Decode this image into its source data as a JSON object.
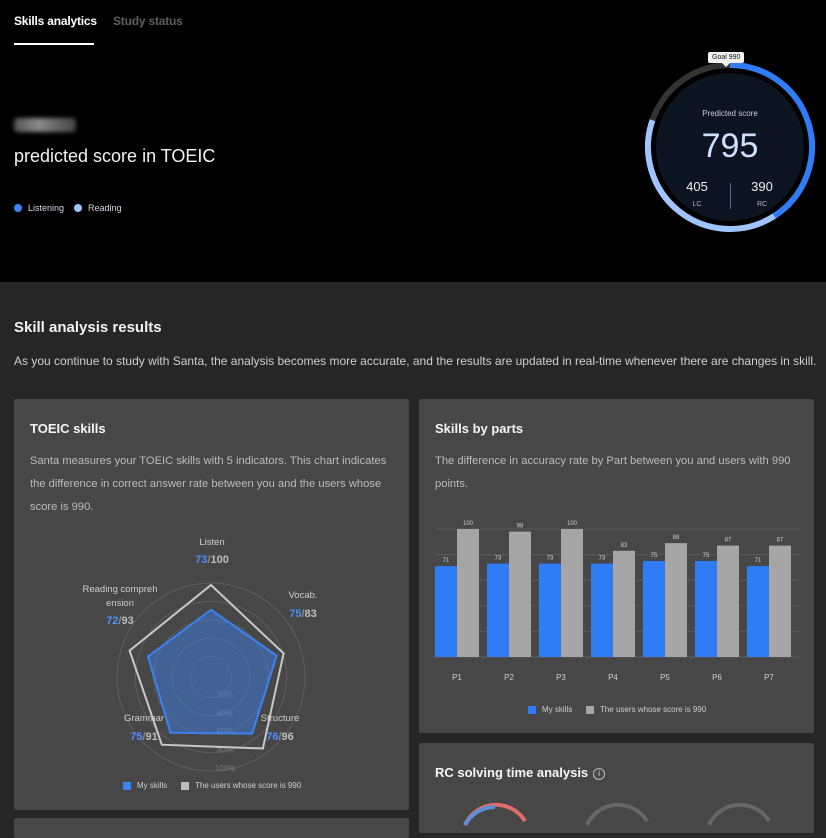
{
  "tabs": [
    {
      "label": "Skills analytics",
      "active": true
    },
    {
      "label": "Study status",
      "active": false
    }
  ],
  "hero": {
    "headline": "predicted score in TOEIC",
    "legend": [
      {
        "label": "Listening",
        "color": "#3b82f6"
      },
      {
        "label": "Reading",
        "color": "#9fc4ff"
      }
    ]
  },
  "gauge": {
    "goal_label": "Goal 990",
    "predicted_label": "Predicted score",
    "predicted_score": "795",
    "lc_score": "405",
    "lc_label": "LC",
    "rc_score": "390",
    "rc_label": "RC",
    "max": 990,
    "lc_value": 405,
    "rc_value": 390
  },
  "analysis": {
    "title": "Skill analysis results",
    "description": "As you continue to study with Santa, the analysis becomes more accurate, and the results are updated in real-time whenever there are changes in skill."
  },
  "toeic_skills": {
    "title": "TOEIC skills",
    "description_lines": [
      "Santa measures your TOEIC skills with 5 indicators. This chart indicates",
      "the difference in correct answer rate between you and the users whose",
      "score is 990."
    ],
    "grid_labels": [
      "20%",
      "40%",
      "60%",
      "80%",
      "100%"
    ],
    "legend": {
      "mine": "My skills",
      "other": "The users whose score is 990"
    }
  },
  "skills_by_parts": {
    "title": "Skills by parts",
    "description_lines": [
      "The difference in accuracy rate by Part between you and users with 990",
      "points."
    ],
    "legend": {
      "mine": "My skills",
      "other": "The users whose score is 990"
    }
  },
  "rc_time": {
    "title": "RC solving time analysis",
    "info_icon": "i"
  },
  "chart_data": [
    {
      "type": "radar",
      "axes": [
        {
          "label": "Listen",
          "mine": 73,
          "other": 100
        },
        {
          "label": "Vocab.",
          "mine": 75,
          "other": 83
        },
        {
          "label": "Structure",
          "mine": 76,
          "other": 96
        },
        {
          "label": "Grammar",
          "mine": 75,
          "other": 91
        },
        {
          "label": "Reading compreh ension",
          "mine": 72,
          "other": 93
        }
      ],
      "series": [
        {
          "name": "My skills",
          "color": "#3b82f6"
        },
        {
          "name": "The users whose score is 990",
          "color": "#bdbdbd"
        }
      ],
      "range": [
        0,
        100
      ]
    },
    {
      "type": "bar",
      "categories": [
        "P1",
        "P2",
        "P3",
        "P4",
        "P5",
        "P6",
        "P7"
      ],
      "series": [
        {
          "name": "My skills",
          "color": "#2f7cf6",
          "values": [
            71,
            73,
            73,
            73,
            75,
            75,
            71
          ]
        },
        {
          "name": "The users whose score is 990",
          "color": "#a6a6a6",
          "values": [
            100,
            98,
            100,
            83,
            89,
            87,
            87
          ]
        }
      ],
      "ylim": [
        0,
        100
      ]
    }
  ]
}
